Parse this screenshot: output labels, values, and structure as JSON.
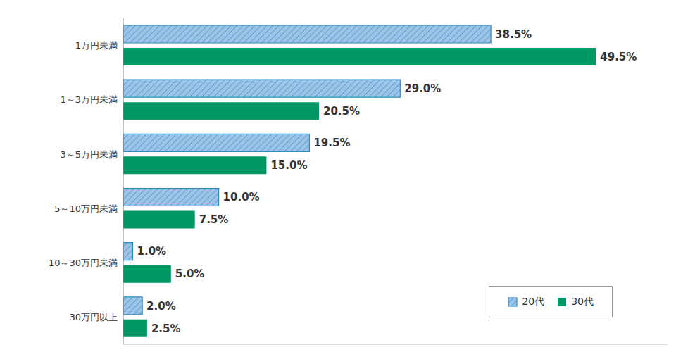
{
  "chart_data": {
    "type": "bar",
    "orientation": "horizontal",
    "categories": [
      "1万円未満",
      "1～3万円未満",
      "3～5万円未満",
      "5～10万円未満",
      "10～30万円未満",
      "30万円以上"
    ],
    "series": [
      {
        "name": "20代",
        "color": "#9dc3e6",
        "values": [
          38.5,
          29.0,
          19.5,
          10.0,
          1.0,
          2.0
        ],
        "value_labels": [
          "38.5%",
          "29.0%",
          "19.5%",
          "10.0%",
          "1.0%",
          "2.0%"
        ]
      },
      {
        "name": "30代",
        "color": "#009966",
        "values": [
          49.5,
          20.5,
          15.0,
          7.5,
          5.0,
          2.5
        ],
        "value_labels": [
          "49.5%",
          "20.5%",
          "15.0%",
          "7.5%",
          "5.0%",
          "2.5%"
        ]
      }
    ],
    "xlim": [
      0,
      57
    ],
    "xticks": [],
    "data_labels": true,
    "legend": "lower right",
    "tick_labels": "y",
    "grid": false
  }
}
